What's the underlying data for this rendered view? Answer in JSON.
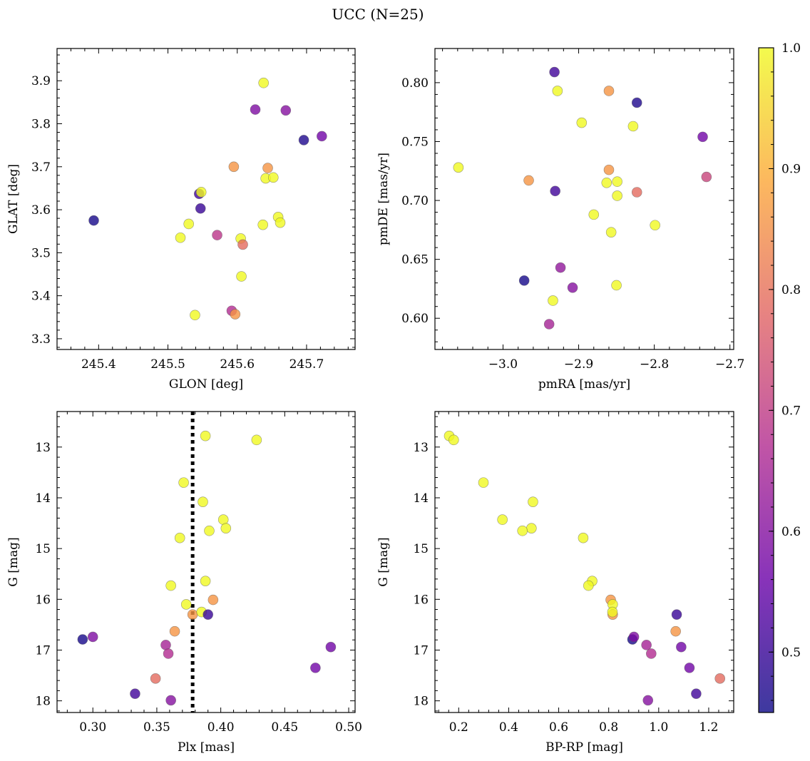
{
  "figure": {
    "title": "UCC (N=25)"
  },
  "colormap": {
    "name": "plasma",
    "stops": [
      "#0d0887",
      "#6a00a8",
      "#b12a90",
      "#e16462",
      "#fca636",
      "#f0f921"
    ],
    "alpha": 0.8,
    "range": [
      0.45,
      1.0
    ],
    "ticks": [
      0.5,
      0.6,
      0.7,
      0.8,
      0.9,
      1.0
    ],
    "tick_labels": [
      "0.5",
      "0.6",
      "0.7",
      "0.8",
      "0.9",
      "1.0"
    ]
  },
  "chart_data": [
    {
      "type": "scatter",
      "xlabel": "GLON [deg]",
      "ylabel": "GLAT [deg]",
      "xlim": [
        245.34,
        245.77
      ],
      "ylim": [
        3.275,
        3.975
      ],
      "xticks": [
        245.4,
        245.5,
        245.6,
        245.7
      ],
      "xtick_labels": [
        "245.4",
        "245.5",
        "245.6",
        "245.7"
      ],
      "yticks": [
        3.3,
        3.4,
        3.5,
        3.6,
        3.7,
        3.8,
        3.9
      ],
      "ytick_labels": [
        "3.3",
        "3.4",
        "3.5",
        "3.6",
        "3.7",
        "3.8",
        "3.9"
      ],
      "points": [
        {
          "x": 245.393,
          "y": 3.575,
          "c": 0.46
        },
        {
          "x": 245.696,
          "y": 3.762,
          "c": 0.47
        },
        {
          "x": 245.722,
          "y": 3.771,
          "c": 0.57
        },
        {
          "x": 245.626,
          "y": 3.833,
          "c": 0.59
        },
        {
          "x": 245.67,
          "y": 3.831,
          "c": 0.6
        },
        {
          "x": 245.638,
          "y": 3.895,
          "c": 1.0
        },
        {
          "x": 245.595,
          "y": 3.7,
          "c": 0.86
        },
        {
          "x": 245.644,
          "y": 3.697,
          "c": 0.86
        },
        {
          "x": 245.641,
          "y": 3.673,
          "c": 1.0
        },
        {
          "x": 245.652,
          "y": 3.675,
          "c": 1.0
        },
        {
          "x": 245.545,
          "y": 3.637,
          "c": 0.51
        },
        {
          "x": 245.548,
          "y": 3.641,
          "c": 1.0
        },
        {
          "x": 245.547,
          "y": 3.603,
          "c": 0.5
        },
        {
          "x": 245.53,
          "y": 3.567,
          "c": 1.0
        },
        {
          "x": 245.518,
          "y": 3.535,
          "c": 1.0
        },
        {
          "x": 245.571,
          "y": 3.541,
          "c": 0.69
        },
        {
          "x": 245.659,
          "y": 3.583,
          "c": 1.0
        },
        {
          "x": 245.662,
          "y": 3.57,
          "c": 1.0
        },
        {
          "x": 245.637,
          "y": 3.565,
          "c": 1.0
        },
        {
          "x": 245.605,
          "y": 3.533,
          "c": 1.0
        },
        {
          "x": 245.608,
          "y": 3.519,
          "c": 0.79
        },
        {
          "x": 245.606,
          "y": 3.445,
          "c": 1.0
        },
        {
          "x": 245.539,
          "y": 3.355,
          "c": 1.0
        },
        {
          "x": 245.592,
          "y": 3.365,
          "c": 0.67
        },
        {
          "x": 245.597,
          "y": 3.357,
          "c": 0.86
        }
      ]
    },
    {
      "type": "scatter",
      "xlabel": "pmRA [mas/yr]",
      "ylabel": "pmDE [mas/yr]",
      "xlim": [
        -3.09,
        -2.695
      ],
      "ylim": [
        0.5735,
        0.829
      ],
      "xticks": [
        -3.0,
        -2.9,
        -2.8,
        -2.7
      ],
      "xtick_labels": [
        "−3.0",
        "−2.9",
        "−2.8",
        "−2.7"
      ],
      "yticks": [
        0.6,
        0.65,
        0.7,
        0.75,
        0.8
      ],
      "ytick_labels": [
        "0.60",
        "0.65",
        "0.70",
        "0.75",
        "0.80"
      ],
      "points": [
        {
          "x": -3.059,
          "y": 0.728,
          "c": 1.0
        },
        {
          "x": -2.972,
          "y": 0.632,
          "c": 0.46
        },
        {
          "x": -2.966,
          "y": 0.717,
          "c": 0.86
        },
        {
          "x": -2.932,
          "y": 0.809,
          "c": 0.51
        },
        {
          "x": -2.928,
          "y": 0.793,
          "c": 1.0
        },
        {
          "x": -2.931,
          "y": 0.708,
          "c": 0.51
        },
        {
          "x": -2.924,
          "y": 0.643,
          "c": 0.62
        },
        {
          "x": -2.934,
          "y": 0.615,
          "c": 1.0
        },
        {
          "x": -2.939,
          "y": 0.595,
          "c": 0.65
        },
        {
          "x": -2.908,
          "y": 0.626,
          "c": 0.6
        },
        {
          "x": -2.896,
          "y": 0.766,
          "c": 1.0
        },
        {
          "x": -2.88,
          "y": 0.688,
          "c": 1.0
        },
        {
          "x": -2.86,
          "y": 0.793,
          "c": 0.86
        },
        {
          "x": -2.86,
          "y": 0.726,
          "c": 0.86
        },
        {
          "x": -2.863,
          "y": 0.715,
          "c": 1.0
        },
        {
          "x": -2.849,
          "y": 0.716,
          "c": 1.0
        },
        {
          "x": -2.849,
          "y": 0.704,
          "c": 1.0
        },
        {
          "x": -2.857,
          "y": 0.673,
          "c": 1.0
        },
        {
          "x": -2.85,
          "y": 0.628,
          "c": 1.0
        },
        {
          "x": -2.823,
          "y": 0.783,
          "c": 0.47
        },
        {
          "x": -2.828,
          "y": 0.763,
          "c": 1.0
        },
        {
          "x": -2.823,
          "y": 0.707,
          "c": 0.79
        },
        {
          "x": -2.799,
          "y": 0.679,
          "c": 1.0
        },
        {
          "x": -2.736,
          "y": 0.754,
          "c": 0.57
        },
        {
          "x": -2.731,
          "y": 0.72,
          "c": 0.72
        }
      ]
    },
    {
      "type": "scatter",
      "xlabel": "Plx [mas]",
      "ylabel": "G [mag]",
      "xlim": [
        0.272,
        0.505
      ],
      "ylim": [
        18.23,
        12.3
      ],
      "y_inverted": true,
      "xticks": [
        0.3,
        0.35,
        0.4,
        0.45,
        0.5
      ],
      "xtick_labels": [
        "0.30",
        "0.35",
        "0.40",
        "0.45",
        "0.50"
      ],
      "yticks": [
        13,
        14,
        15,
        16,
        17,
        18
      ],
      "ytick_labels": [
        "13",
        "14",
        "15",
        "16",
        "17",
        "18"
      ],
      "vline": {
        "x": 0.378,
        "style": "dotted",
        "color": "#000000"
      },
      "points": [
        {
          "x": 0.388,
          "y": 12.78,
          "c": 1.0
        },
        {
          "x": 0.428,
          "y": 12.86,
          "c": 1.0
        },
        {
          "x": 0.371,
          "y": 13.7,
          "c": 1.0
        },
        {
          "x": 0.386,
          "y": 14.08,
          "c": 1.0
        },
        {
          "x": 0.402,
          "y": 14.43,
          "c": 1.0
        },
        {
          "x": 0.404,
          "y": 14.6,
          "c": 1.0
        },
        {
          "x": 0.391,
          "y": 14.65,
          "c": 1.0
        },
        {
          "x": 0.368,
          "y": 14.79,
          "c": 1.0
        },
        {
          "x": 0.388,
          "y": 15.64,
          "c": 1.0
        },
        {
          "x": 0.361,
          "y": 15.73,
          "c": 1.0
        },
        {
          "x": 0.394,
          "y": 16.01,
          "c": 0.86
        },
        {
          "x": 0.373,
          "y": 16.1,
          "c": 1.0
        },
        {
          "x": 0.378,
          "y": 16.3,
          "c": 0.86
        },
        {
          "x": 0.385,
          "y": 16.25,
          "c": 1.0
        },
        {
          "x": 0.39,
          "y": 16.3,
          "c": 0.5
        },
        {
          "x": 0.364,
          "y": 16.63,
          "c": 0.86
        },
        {
          "x": 0.292,
          "y": 16.79,
          "c": 0.46
        },
        {
          "x": 0.3,
          "y": 16.74,
          "c": 0.59
        },
        {
          "x": 0.357,
          "y": 16.9,
          "c": 0.65
        },
        {
          "x": 0.359,
          "y": 17.07,
          "c": 0.67
        },
        {
          "x": 0.486,
          "y": 16.94,
          "c": 0.57
        },
        {
          "x": 0.474,
          "y": 17.35,
          "c": 0.57
        },
        {
          "x": 0.349,
          "y": 17.56,
          "c": 0.79
        },
        {
          "x": 0.333,
          "y": 17.86,
          "c": 0.51
        },
        {
          "x": 0.361,
          "y": 17.99,
          "c": 0.6
        }
      ]
    },
    {
      "type": "scatter",
      "xlabel": "BP-RP [mag]",
      "ylabel": "G [mag]",
      "xlim": [
        0.105,
        1.3
      ],
      "ylim": [
        18.23,
        12.3
      ],
      "y_inverted": true,
      "xticks": [
        0.2,
        0.4,
        0.6,
        0.8,
        1.0,
        1.2
      ],
      "xtick_labels": [
        "0.2",
        "0.4",
        "0.6",
        "0.8",
        "1.0",
        "1.2"
      ],
      "yticks": [
        13,
        14,
        15,
        16,
        17,
        18
      ],
      "ytick_labels": [
        "13",
        "14",
        "15",
        "16",
        "17",
        "18"
      ],
      "points": [
        {
          "x": 0.162,
          "y": 12.78,
          "c": 1.0
        },
        {
          "x": 0.18,
          "y": 12.86,
          "c": 1.0
        },
        {
          "x": 0.299,
          "y": 13.7,
          "c": 1.0
        },
        {
          "x": 0.497,
          "y": 14.08,
          "c": 1.0
        },
        {
          "x": 0.375,
          "y": 14.43,
          "c": 1.0
        },
        {
          "x": 0.491,
          "y": 14.6,
          "c": 1.0
        },
        {
          "x": 0.455,
          "y": 14.65,
          "c": 1.0
        },
        {
          "x": 0.698,
          "y": 14.79,
          "c": 1.0
        },
        {
          "x": 0.734,
          "y": 15.64,
          "c": 1.0
        },
        {
          "x": 0.719,
          "y": 15.73,
          "c": 1.0
        },
        {
          "x": 0.808,
          "y": 16.01,
          "c": 0.86
        },
        {
          "x": 0.816,
          "y": 16.1,
          "c": 1.0
        },
        {
          "x": 0.816,
          "y": 16.3,
          "c": 0.86
        },
        {
          "x": 0.815,
          "y": 16.25,
          "c": 1.0
        },
        {
          "x": 1.072,
          "y": 16.3,
          "c": 0.5
        },
        {
          "x": 1.068,
          "y": 16.63,
          "c": 0.86
        },
        {
          "x": 0.895,
          "y": 16.79,
          "c": 0.46
        },
        {
          "x": 0.901,
          "y": 16.74,
          "c": 0.59
        },
        {
          "x": 0.951,
          "y": 16.9,
          "c": 0.65
        },
        {
          "x": 0.97,
          "y": 17.07,
          "c": 0.67
        },
        {
          "x": 1.09,
          "y": 16.94,
          "c": 0.57
        },
        {
          "x": 1.123,
          "y": 17.35,
          "c": 0.57
        },
        {
          "x": 1.245,
          "y": 17.56,
          "c": 0.79
        },
        {
          "x": 1.15,
          "y": 17.86,
          "c": 0.51
        },
        {
          "x": 0.957,
          "y": 17.99,
          "c": 0.6
        }
      ]
    }
  ]
}
